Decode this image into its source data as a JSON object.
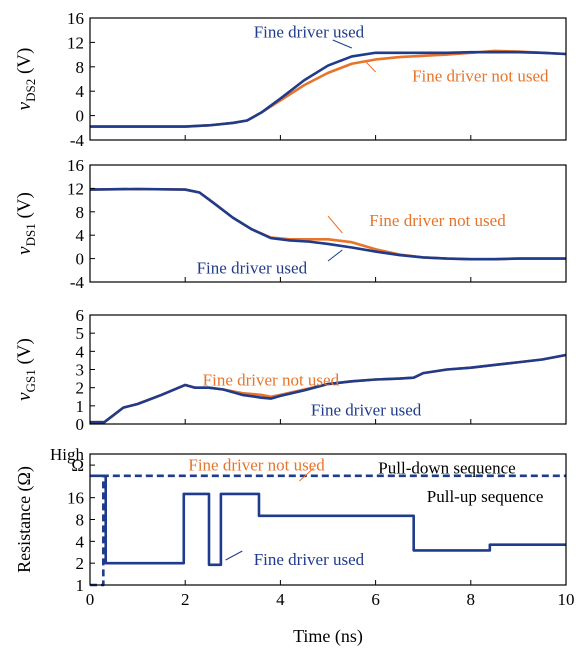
{
  "figure": {
    "xlabel": "Time (ns)",
    "xlim": [
      0,
      10
    ],
    "xticks": [
      0,
      2,
      4,
      6,
      8,
      10
    ]
  },
  "colors": {
    "used": "#1f3b8c",
    "not_used": "#e8742a",
    "axis": "#000000"
  },
  "chart_data": [
    {
      "type": "line",
      "id": "vds2",
      "ylabel_var": "v",
      "ylabel_sub": "DS2",
      "ylabel_unit": "(V)",
      "ylim": [
        -4,
        16
      ],
      "yticks": [
        "16",
        "12",
        "8",
        "4",
        "0",
        "-4"
      ],
      "ytick_values": [
        16,
        12,
        8,
        4,
        0,
        -4
      ],
      "series": [
        {
          "name": "Fine driver not used",
          "color_key": "not_used",
          "x": [
            0,
            1,
            2,
            2.5,
            3,
            3.3,
            3.6,
            4,
            4.5,
            5,
            5.5,
            6,
            6.5,
            7,
            7.5,
            8,
            8.5,
            9,
            9.5,
            10
          ],
          "y": [
            -1.8,
            -1.8,
            -1.8,
            -1.6,
            -1.2,
            -0.8,
            0.5,
            2.5,
            5,
            7,
            8.5,
            9.2,
            9.6,
            9.8,
            10,
            10.3,
            10.6,
            10.5,
            10.3,
            10.1
          ]
        },
        {
          "name": "Fine driver used",
          "color_key": "used",
          "x": [
            0,
            1,
            2,
            2.5,
            3,
            3.3,
            3.6,
            4,
            4.5,
            5,
            5.5,
            6,
            6.5,
            7,
            7.5,
            8,
            8.5,
            9,
            9.5,
            10
          ],
          "y": [
            -1.8,
            -1.8,
            -1.8,
            -1.6,
            -1.2,
            -0.8,
            0.5,
            2.8,
            5.8,
            8.2,
            9.7,
            10.3,
            10.3,
            10.3,
            10.3,
            10.4,
            10.4,
            10.4,
            10.3,
            10.1
          ]
        }
      ],
      "annotations": [
        {
          "text": "Fine driver used",
          "color_key": "used",
          "x": 4.6,
          "y": 13.8
        },
        {
          "text": "Fine driver not used",
          "color_key": "not_used",
          "x": 8.2,
          "y": 6.6
        }
      ]
    },
    {
      "type": "line",
      "id": "vds1",
      "ylabel_var": "v",
      "ylabel_sub": "DS1",
      "ylabel_unit": "(V)",
      "ylim": [
        -4,
        16
      ],
      "yticks": [
        "16",
        "12",
        "8",
        "4",
        "0",
        "-4"
      ],
      "ytick_values": [
        16,
        12,
        8,
        4,
        0,
        -4
      ],
      "series": [
        {
          "name": "Fine driver not used",
          "color_key": "not_used",
          "x": [
            0,
            1,
            2,
            2.3,
            2.6,
            3,
            3.4,
            3.8,
            4.2,
            4.6,
            5,
            5.5,
            6,
            6.5,
            7,
            7.5,
            8,
            8.5,
            9,
            9.5,
            10
          ],
          "y": [
            11.8,
            11.9,
            11.8,
            11.3,
            9.5,
            7,
            5,
            3.6,
            3.3,
            3.3,
            3.3,
            2.8,
            1.6,
            0.7,
            0.2,
            0,
            -0.1,
            -0.1,
            0,
            0,
            0
          ]
        },
        {
          "name": "Fine driver used",
          "color_key": "used",
          "x": [
            0,
            1,
            2,
            2.3,
            2.6,
            3,
            3.4,
            3.8,
            4.2,
            4.6,
            5,
            5.5,
            6,
            6.5,
            7,
            7.5,
            8,
            8.5,
            9,
            9.5,
            10
          ],
          "y": [
            11.8,
            11.9,
            11.8,
            11.3,
            9.5,
            7,
            5,
            3.5,
            3.1,
            2.9,
            2.5,
            1.9,
            1.2,
            0.6,
            0.2,
            0,
            -0.1,
            -0.1,
            0,
            0,
            0
          ]
        }
      ],
      "annotations": [
        {
          "text": "Fine driver not used",
          "color_key": "not_used",
          "x": 7.3,
          "y": 6.6
        },
        {
          "text": "Fine driver used",
          "color_key": "used",
          "x": 3.4,
          "y": -1.5
        }
      ]
    },
    {
      "type": "line",
      "id": "vgs1",
      "ylabel_var": "v",
      "ylabel_sub": "GS1",
      "ylabel_unit": "(V)",
      "ylim": [
        0,
        6
      ],
      "yticks": [
        "6",
        "5",
        "4",
        "3",
        "2",
        "1",
        "0"
      ],
      "ytick_values": [
        6,
        5,
        4,
        3,
        2,
        1,
        0
      ],
      "series": [
        {
          "name": "Fine driver not used",
          "color_key": "not_used",
          "x": [
            0,
            0.3,
            0.5,
            0.7,
            1,
            1.5,
            2,
            2.2,
            2.5,
            2.8,
            3.2,
            3.6,
            3.8,
            4,
            4.5,
            5,
            5.5,
            6,
            6.5,
            6.8,
            7,
            7.5,
            8,
            8.5,
            9,
            9.5,
            10
          ],
          "y": [
            0.1,
            0.1,
            0.5,
            0.9,
            1.1,
            1.6,
            2.15,
            2.0,
            2.0,
            1.9,
            1.7,
            1.6,
            1.5,
            1.6,
            1.9,
            2.2,
            2.35,
            2.45,
            2.5,
            2.55,
            2.8,
            3.0,
            3.1,
            3.25,
            3.4,
            3.55,
            3.8
          ]
        },
        {
          "name": "Fine driver used",
          "color_key": "used",
          "x": [
            0,
            0.3,
            0.5,
            0.7,
            1,
            1.5,
            2,
            2.2,
            2.5,
            2.8,
            3.2,
            3.6,
            3.8,
            4,
            4.5,
            5,
            5.5,
            6,
            6.5,
            6.8,
            7,
            7.5,
            8,
            8.5,
            9,
            9.5,
            10
          ],
          "y": [
            0.1,
            0.1,
            0.5,
            0.9,
            1.1,
            1.6,
            2.15,
            2.0,
            2.0,
            1.9,
            1.6,
            1.45,
            1.4,
            1.55,
            1.85,
            2.2,
            2.35,
            2.45,
            2.5,
            2.55,
            2.8,
            3.0,
            3.1,
            3.25,
            3.4,
            3.55,
            3.8
          ]
        }
      ],
      "annotations": [
        {
          "text": "Fine driver not used",
          "color_key": "not_used",
          "x": 3.8,
          "y": 2.45
        },
        {
          "text": "Fine driver used",
          "color_key": "used",
          "x": 5.8,
          "y": 0.8
        }
      ]
    },
    {
      "type": "line",
      "id": "resistance",
      "ylabel_text": "Resistance (Ω)",
      "yscale": "log2",
      "ylim": [
        1,
        64
      ],
      "yticks": [
        "1",
        "2",
        "4",
        "8",
        "16",
        "Ω",
        "High"
      ],
      "ytick_values": [
        1,
        2,
        4,
        8,
        16,
        45,
        64
      ],
      "series": [
        {
          "name": "Pull-down sequence",
          "color_key": "used",
          "dash": true,
          "x": [
            0,
            0.28,
            0.28,
            10
          ],
          "y": [
            1,
            1,
            32,
            32
          ]
        },
        {
          "name": "Pull-up sequence",
          "color_key": "used",
          "x": [
            0,
            0.33,
            0.33,
            1.97,
            1.97,
            2.5,
            2.5,
            2.75,
            2.75,
            3.55,
            3.55,
            6.8,
            6.8,
            8.4,
            8.4,
            10
          ],
          "y": [
            32,
            32,
            2,
            2,
            18,
            18,
            1.9,
            1.9,
            18,
            18,
            9,
            9,
            3,
            3,
            3.6,
            3.6
          ]
        }
      ],
      "annotations": [
        {
          "text": "Fine driver not used",
          "color_key": "not_used",
          "x": 3.5,
          "y": 46
        },
        {
          "text": "Pull-down sequence",
          "color_key": "axis",
          "x": 7.5,
          "y": 42
        },
        {
          "text": "Pull-up sequence",
          "color_key": "axis",
          "x": 8.3,
          "y": 17
        },
        {
          "text": "Fine driver used",
          "color_key": "used",
          "x": 4.6,
          "y": 2.3
        }
      ]
    }
  ]
}
